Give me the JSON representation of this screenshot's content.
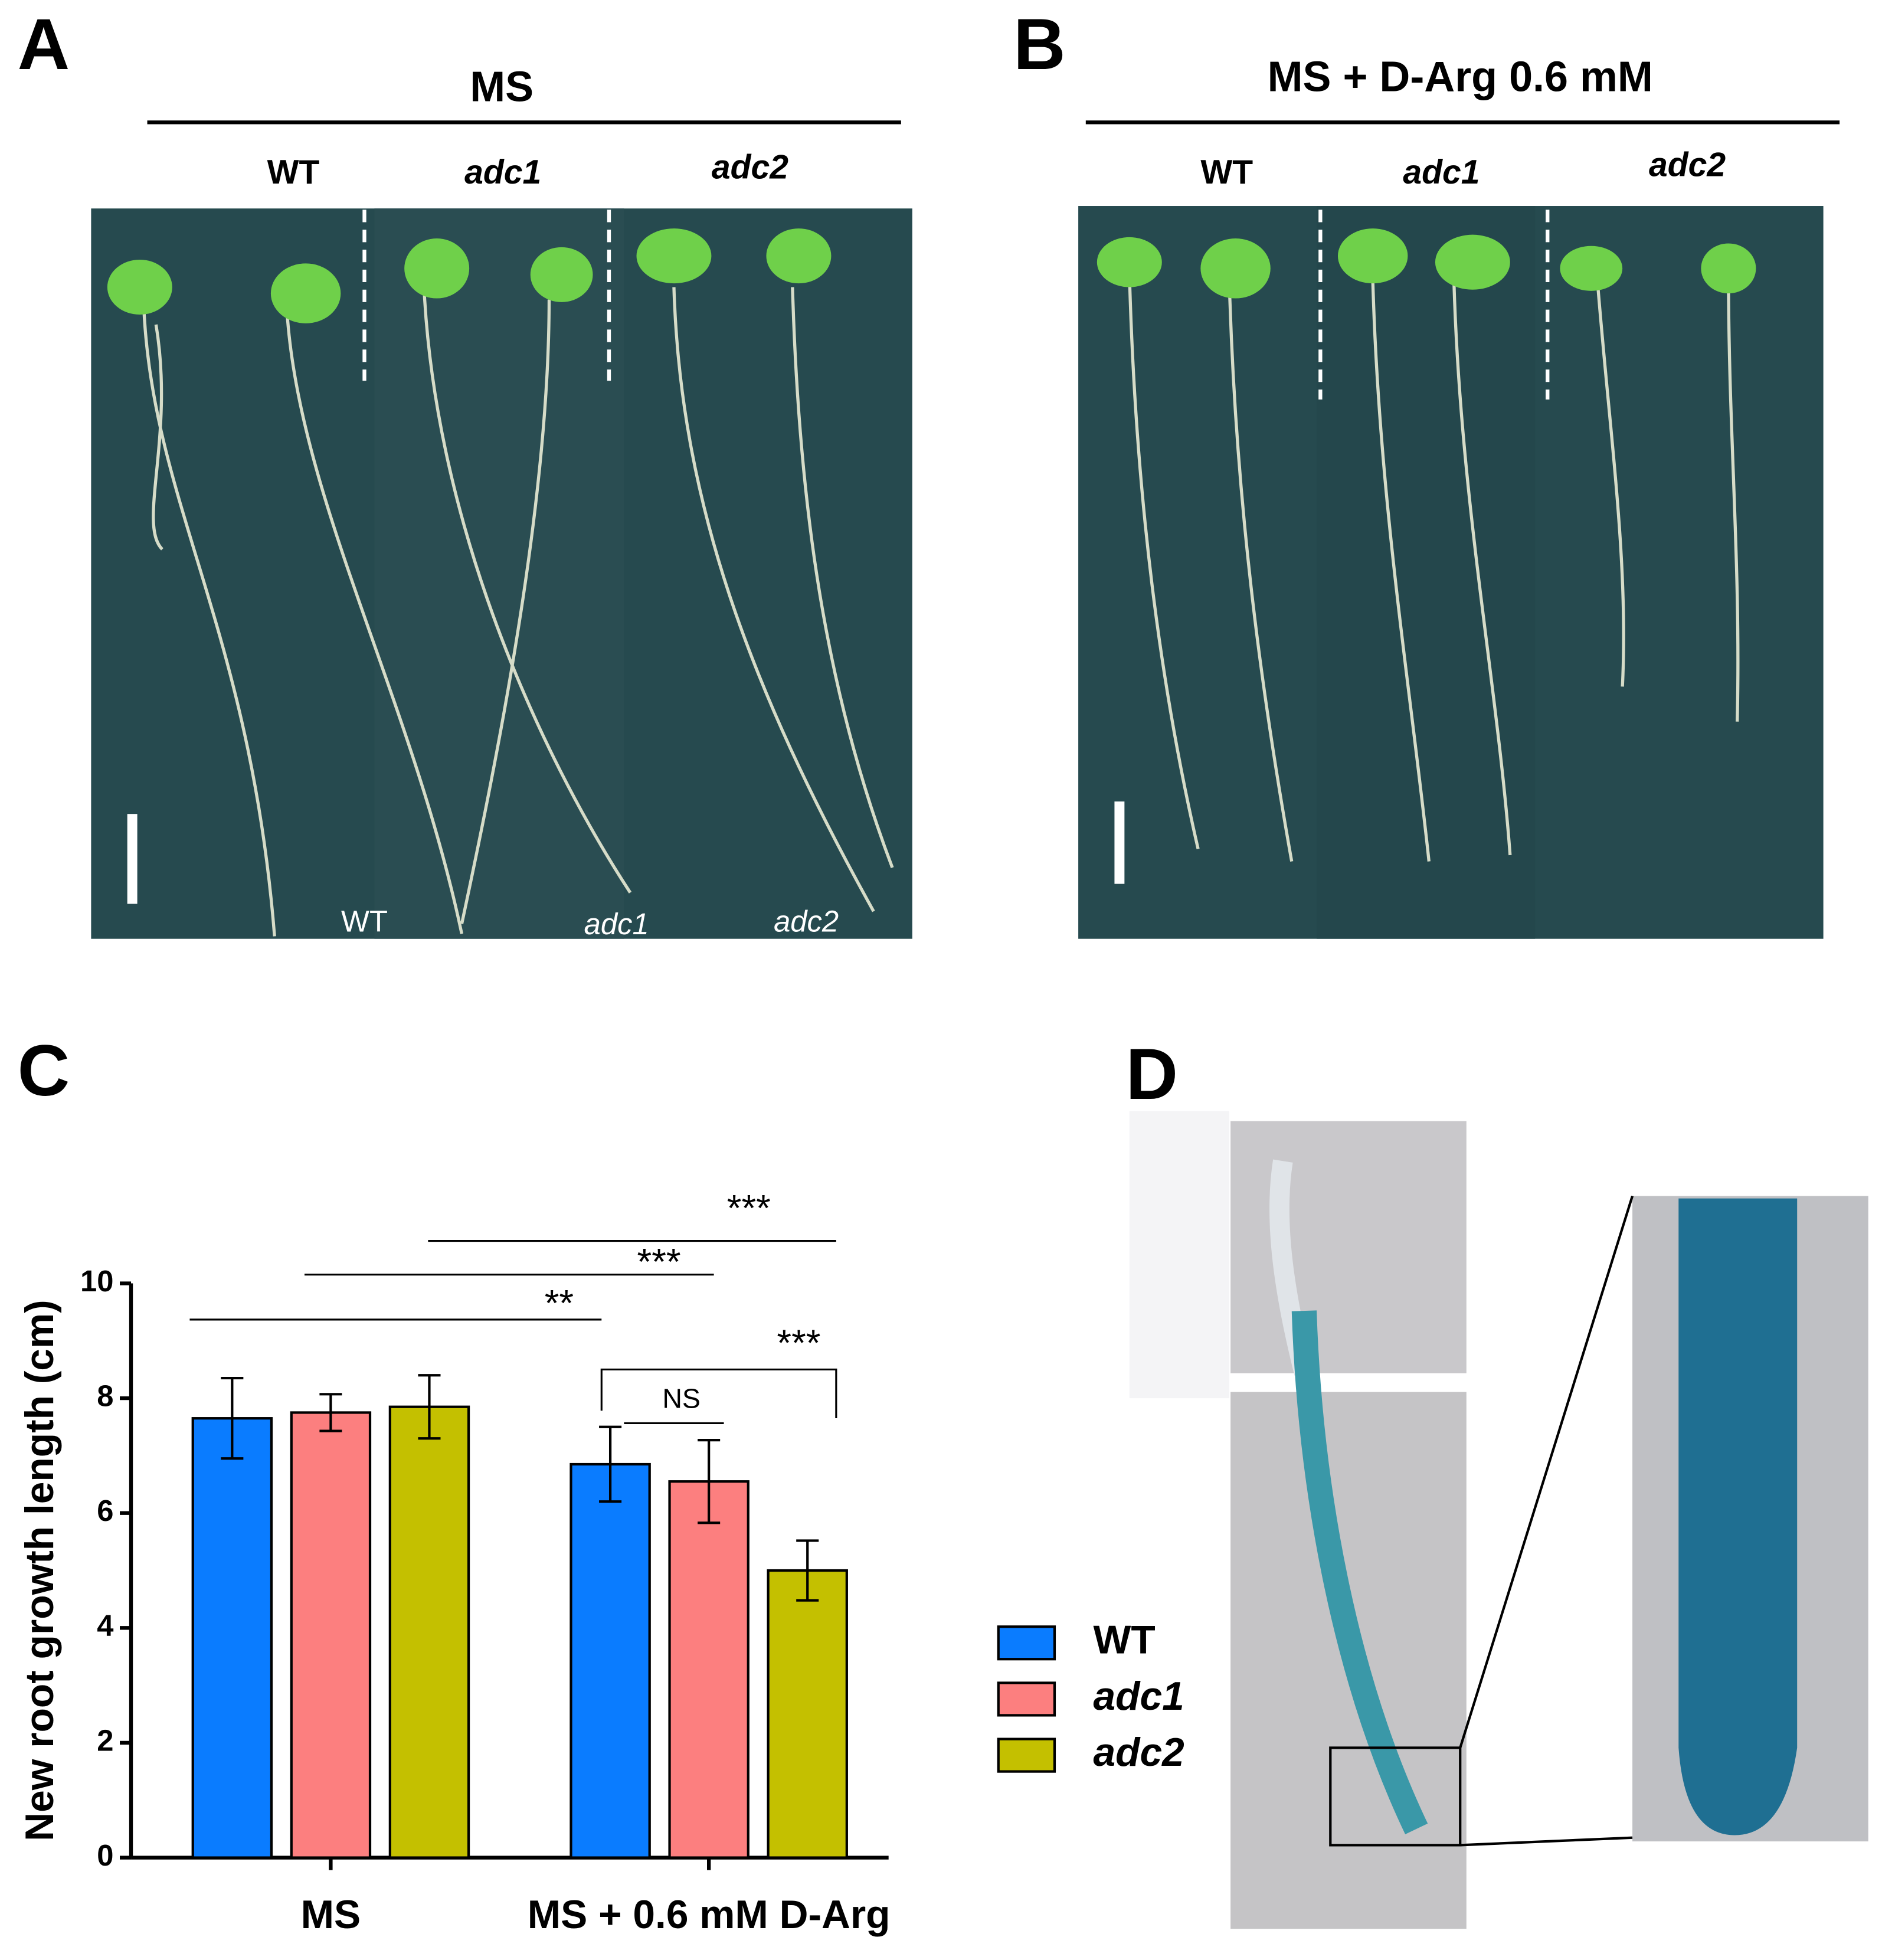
{
  "panels": {
    "a": {
      "label": "A",
      "condition": "MS",
      "genotypes": [
        "WT",
        "adc1",
        "adc2"
      ],
      "photo_labels": [
        "WT",
        "adc1",
        "adc2"
      ]
    },
    "b": {
      "label": "B",
      "condition": "MS + D-Arg 0.6 mM",
      "genotypes": [
        "WT",
        "adc1",
        "adc2"
      ]
    },
    "c": {
      "label": "C"
    },
    "d": {
      "label": "D"
    }
  },
  "chart_data": {
    "type": "bar",
    "y_label": "New root growth length (cm)",
    "categories": [
      "MS",
      "MS + 0.6 mM D-Arg"
    ],
    "series": [
      {
        "name": "WT",
        "color": "#0a7cff",
        "values": [
          7.65,
          6.85
        ],
        "errors": [
          0.7,
          0.65
        ]
      },
      {
        "name": "adc1",
        "color": "#fc7f7f",
        "values": [
          7.75,
          6.55
        ],
        "errors": [
          0.32,
          0.72
        ]
      },
      {
        "name": "adc2",
        "color": "#c4c000",
        "values": [
          7.85,
          5.0
        ],
        "errors": [
          0.55,
          0.52
        ]
      }
    ],
    "ylim": [
      0,
      10
    ],
    "yticks": [
      0,
      2,
      4,
      6,
      8,
      10
    ],
    "annotations": [
      "***",
      "***",
      "**",
      "***",
      "NS"
    ]
  }
}
